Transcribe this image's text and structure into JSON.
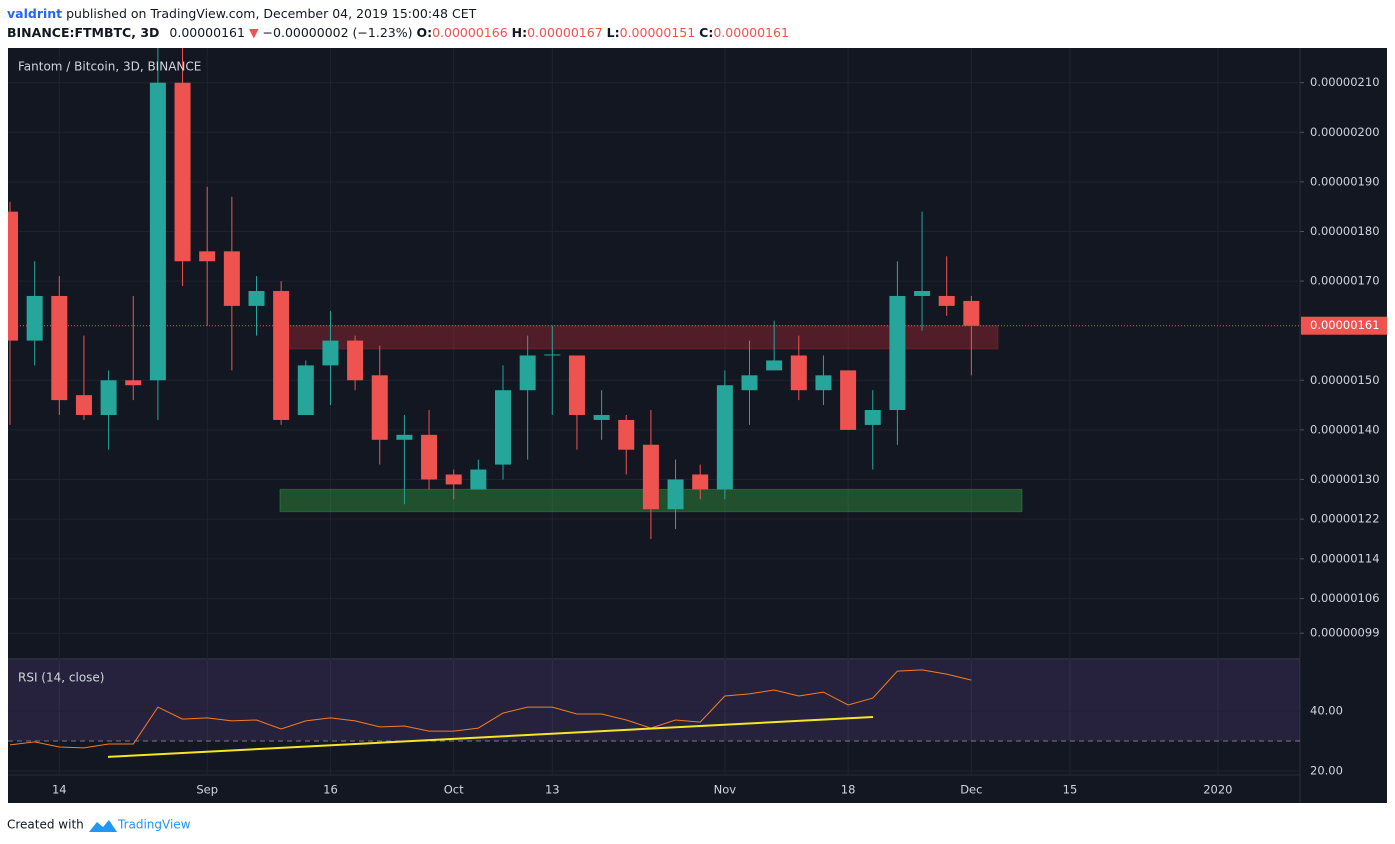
{
  "header": {
    "publisher": "valdrint",
    "published": "published on TradingView.com, December 04, 2019 15:00:48 CET",
    "symbol": "BINANCE:FTMBTC, 3D",
    "last": "0.00000161",
    "arrow": "▼",
    "change": "−0.00000002 (−1.23%)",
    "ohlc_labels": [
      "O:",
      "H:",
      "L:",
      "C:"
    ],
    "ohlc_values": [
      "0.00000166",
      "0.00000167",
      "0.00000151",
      "0.00000161"
    ]
  },
  "footer": {
    "created": "Created with",
    "brand": "TradingView"
  },
  "chart_data": [
    {
      "type": "candlestick",
      "legend": "Fantom / Bitcoin, 3D, BINANCE",
      "up_color": "#26a69a",
      "down_color": "#ef5350",
      "categories": [
        null,
        null,
        "14",
        null,
        null,
        null,
        null,
        null,
        "Sep",
        null,
        null,
        null,
        null,
        "16",
        null,
        null,
        null,
        null,
        "Oct",
        null,
        null,
        null,
        "13",
        null,
        null,
        null,
        null,
        null,
        null,
        "Nov",
        null,
        null,
        null,
        null,
        "18",
        null,
        null,
        null,
        null,
        "Dec",
        null,
        null,
        null,
        "15",
        null,
        null,
        null,
        null,
        null,
        "2020",
        null,
        null,
        null
      ],
      "open": [
        1.84e-06,
        1.58e-06,
        1.67e-06,
        1.47e-06,
        1.43e-06,
        1.5e-06,
        1.5e-06,
        2.1e-06,
        1.76e-06,
        1.76e-06,
        1.65e-06,
        1.68e-06,
        1.43e-06,
        1.53e-06,
        1.58e-06,
        1.51e-06,
        1.38e-06,
        1.39e-06,
        1.31e-06,
        1.28e-06,
        1.33e-06,
        1.48e-06,
        1.55e-06,
        1.55e-06,
        1.42e-06,
        1.42e-06,
        1.37e-06,
        1.24e-06,
        1.31e-06,
        1.28e-06,
        1.48e-06,
        1.52e-06,
        1.55e-06,
        1.48e-06,
        1.52e-06,
        1.41e-06,
        1.44e-06,
        1.67e-06,
        1.67e-06,
        1.66e-06,
        null,
        null,
        null,
        null,
        null,
        null,
        null,
        null,
        null,
        null,
        null,
        null,
        null
      ],
      "high": [
        1.86e-06,
        1.74e-06,
        1.71e-06,
        1.59e-06,
        1.52e-06,
        1.67e-06,
        2.18e-06,
        2.17e-06,
        1.89e-06,
        1.87e-06,
        1.71e-06,
        1.7e-06,
        1.54e-06,
        1.64e-06,
        1.59e-06,
        1.57e-06,
        1.43e-06,
        1.44e-06,
        1.32e-06,
        1.34e-06,
        1.53e-06,
        1.59e-06,
        1.61e-06,
        1.55e-06,
        1.48e-06,
        1.43e-06,
        1.44e-06,
        1.34e-06,
        1.33e-06,
        1.52e-06,
        1.58e-06,
        1.62e-06,
        1.59e-06,
        1.55e-06,
        1.52e-06,
        1.48e-06,
        1.74e-06,
        1.84e-06,
        1.75e-06,
        1.67e-06,
        null,
        null,
        null,
        null,
        null,
        null,
        null,
        null,
        null,
        null,
        null,
        null,
        null
      ],
      "low": [
        1.41e-06,
        1.53e-06,
        1.43e-06,
        1.42e-06,
        1.36e-06,
        1.46e-06,
        1.42e-06,
        1.69e-06,
        1.61e-06,
        1.52e-06,
        1.59e-06,
        1.41e-06,
        1.43e-06,
        1.45e-06,
        1.48e-06,
        1.33e-06,
        1.25e-06,
        1.28e-06,
        1.26e-06,
        1.28e-06,
        1.3e-06,
        1.34e-06,
        1.43e-06,
        1.36e-06,
        1.38e-06,
        1.31e-06,
        1.18e-06,
        1.2e-06,
        1.26e-06,
        1.26e-06,
        1.41e-06,
        1.52e-06,
        1.46e-06,
        1.45e-06,
        1.4e-06,
        1.32e-06,
        1.37e-06,
        1.6e-06,
        1.63e-06,
        1.51e-06,
        null,
        null,
        null,
        null,
        null,
        null,
        null,
        null,
        null,
        null,
        null,
        null,
        null
      ],
      "close": [
        1.58e-06,
        1.67e-06,
        1.46e-06,
        1.43e-06,
        1.5e-06,
        1.49e-06,
        2.1e-06,
        1.74e-06,
        1.74e-06,
        1.65e-06,
        1.68e-06,
        1.42e-06,
        1.53e-06,
        1.58e-06,
        1.5e-06,
        1.38e-06,
        1.39e-06,
        1.3e-06,
        1.29e-06,
        1.32e-06,
        1.48e-06,
        1.55e-06,
        1.552e-06,
        1.43e-06,
        1.43e-06,
        1.36e-06,
        1.24e-06,
        1.3e-06,
        1.28e-06,
        1.49e-06,
        1.51e-06,
        1.54e-06,
        1.48e-06,
        1.51e-06,
        1.4e-06,
        1.44e-06,
        1.67e-06,
        1.68e-06,
        1.65e-06,
        1.61e-06,
        null,
        null,
        null,
        null,
        null,
        null,
        null,
        null,
        null,
        null,
        null,
        null,
        null
      ],
      "ylim": [
        9.4e-07,
        2.17e-06
      ],
      "yticks": [
        {
          "value": 2.1e-06,
          "label": "0.00000210"
        },
        {
          "value": 2e-06,
          "label": "0.00000200"
        },
        {
          "value": 1.9e-06,
          "label": "0.00000190"
        },
        {
          "value": 1.8e-06,
          "label": "0.00000180"
        },
        {
          "value": 1.7e-06,
          "label": "0.00000170"
        },
        {
          "value": 1.5e-06,
          "label": "0.00000150"
        },
        {
          "value": 1.4e-06,
          "label": "0.00000140"
        },
        {
          "value": 1.3e-06,
          "label": "0.00000130"
        },
        {
          "value": 1.22e-06,
          "label": "0.00000122"
        },
        {
          "value": 1.14e-06,
          "label": "0.00000114"
        },
        {
          "value": 1.06e-06,
          "label": "0.00000106"
        },
        {
          "value": 9.9e-07,
          "label": "0.00000099"
        }
      ],
      "last_price": {
        "value": 1.61e-06,
        "label": "0.00000161"
      },
      "zones": [
        {
          "low": 1.563e-06,
          "high": 1.61e-06,
          "color": "rgba(196,40,52,0.35)"
        },
        {
          "low": 1.235e-06,
          "high": 1.28e-06,
          "color": "rgba(56,168,64,0.4)"
        }
      ],
      "grid": true
    },
    {
      "type": "line",
      "title": "RSI (14, close)",
      "color": "#f57c20",
      "values": [
        28.7,
        29.7,
        28,
        27.7,
        29,
        29,
        41.3,
        37.3,
        37.7,
        36.7,
        37,
        34,
        36.7,
        37.7,
        36.7,
        34.7,
        35,
        33.3,
        33.3,
        34.3,
        39.3,
        41.3,
        41.3,
        39,
        39,
        37,
        34.3,
        37,
        36.3,
        45,
        45.7,
        47,
        45,
        46.3,
        42,
        44.3,
        53.3,
        53.7,
        52.3,
        50.3,
        null,
        null,
        null,
        null,
        null,
        null,
        null,
        null,
        null,
        null,
        null,
        null,
        null
      ],
      "ylim": [
        18.67,
        57
      ],
      "yticks": [
        {
          "value": 40,
          "label": "40.00"
        },
        {
          "value": 20,
          "label": "20.00"
        }
      ],
      "band": [
        30,
        70
      ],
      "trendline": {
        "values": [
          24.7,
          38
        ],
        "color": "#f5e625"
      }
    }
  ]
}
